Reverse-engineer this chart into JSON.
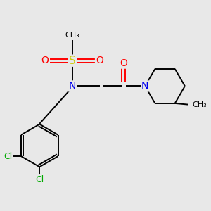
{
  "bg_color": "#e8e8e8",
  "atom_colors": {
    "C": "#000000",
    "N": "#0000ee",
    "O": "#ff0000",
    "S": "#cccc00",
    "Cl": "#00aa00",
    "H": "#000000"
  },
  "bond_color": "#000000",
  "lw": 1.4
}
